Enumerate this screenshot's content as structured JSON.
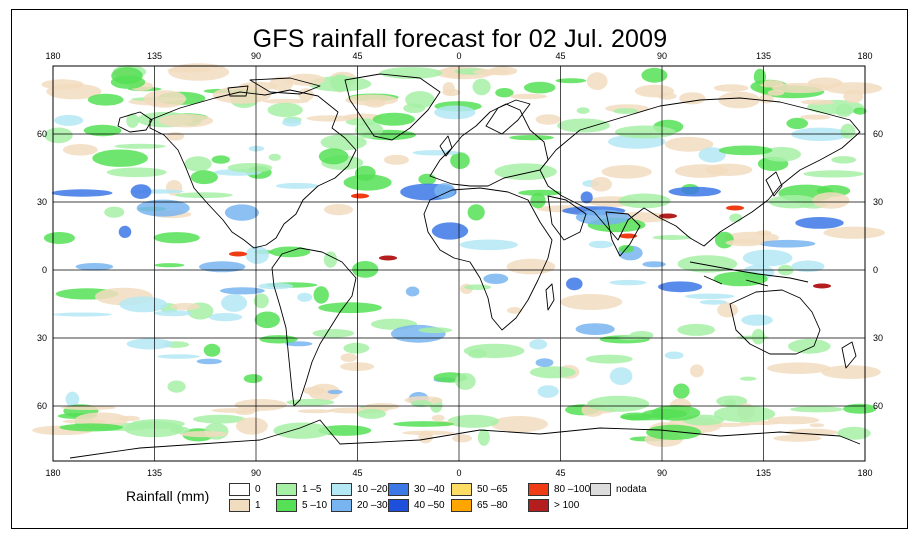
{
  "title": "GFS rainfall forecast for 02 Jul. 2009",
  "axes": {
    "lon_ticks": [
      "180",
      "135",
      "90",
      "45",
      "0",
      "45",
      "90",
      "135",
      "180"
    ],
    "lat_ticks": [
      "60",
      "30",
      "0",
      "30",
      "60"
    ]
  },
  "legend": {
    "title": "Rainfall (mm)",
    "items": [
      {
        "label": "0",
        "color": "#ffffff"
      },
      {
        "label": "1",
        "color": "#f2dcc0"
      },
      {
        "label": "1 –5",
        "color": "#a6f0a6"
      },
      {
        "label": "5 –10",
        "color": "#55e055"
      },
      {
        "label": "10 –20",
        "color": "#b4e8f5"
      },
      {
        "label": "20 –30",
        "color": "#78b4f0"
      },
      {
        "label": "30 –40",
        "color": "#3c78e6"
      },
      {
        "label": "40 –50",
        "color": "#1e50dc"
      },
      {
        "label": "50 –65",
        "color": "#ffdc64"
      },
      {
        "label": "65 –80",
        "color": "#ffa500"
      },
      {
        "label": "80 –100",
        "color": "#f03c14"
      },
      {
        "label": "> 100",
        "color": "#b41e1e"
      },
      {
        "label": "nodata",
        "color": "#dcdcdc"
      }
    ]
  },
  "map_colors": {
    "ocean": "#ffffff",
    "land_outline": "#000000",
    "grid": "#000000"
  }
}
